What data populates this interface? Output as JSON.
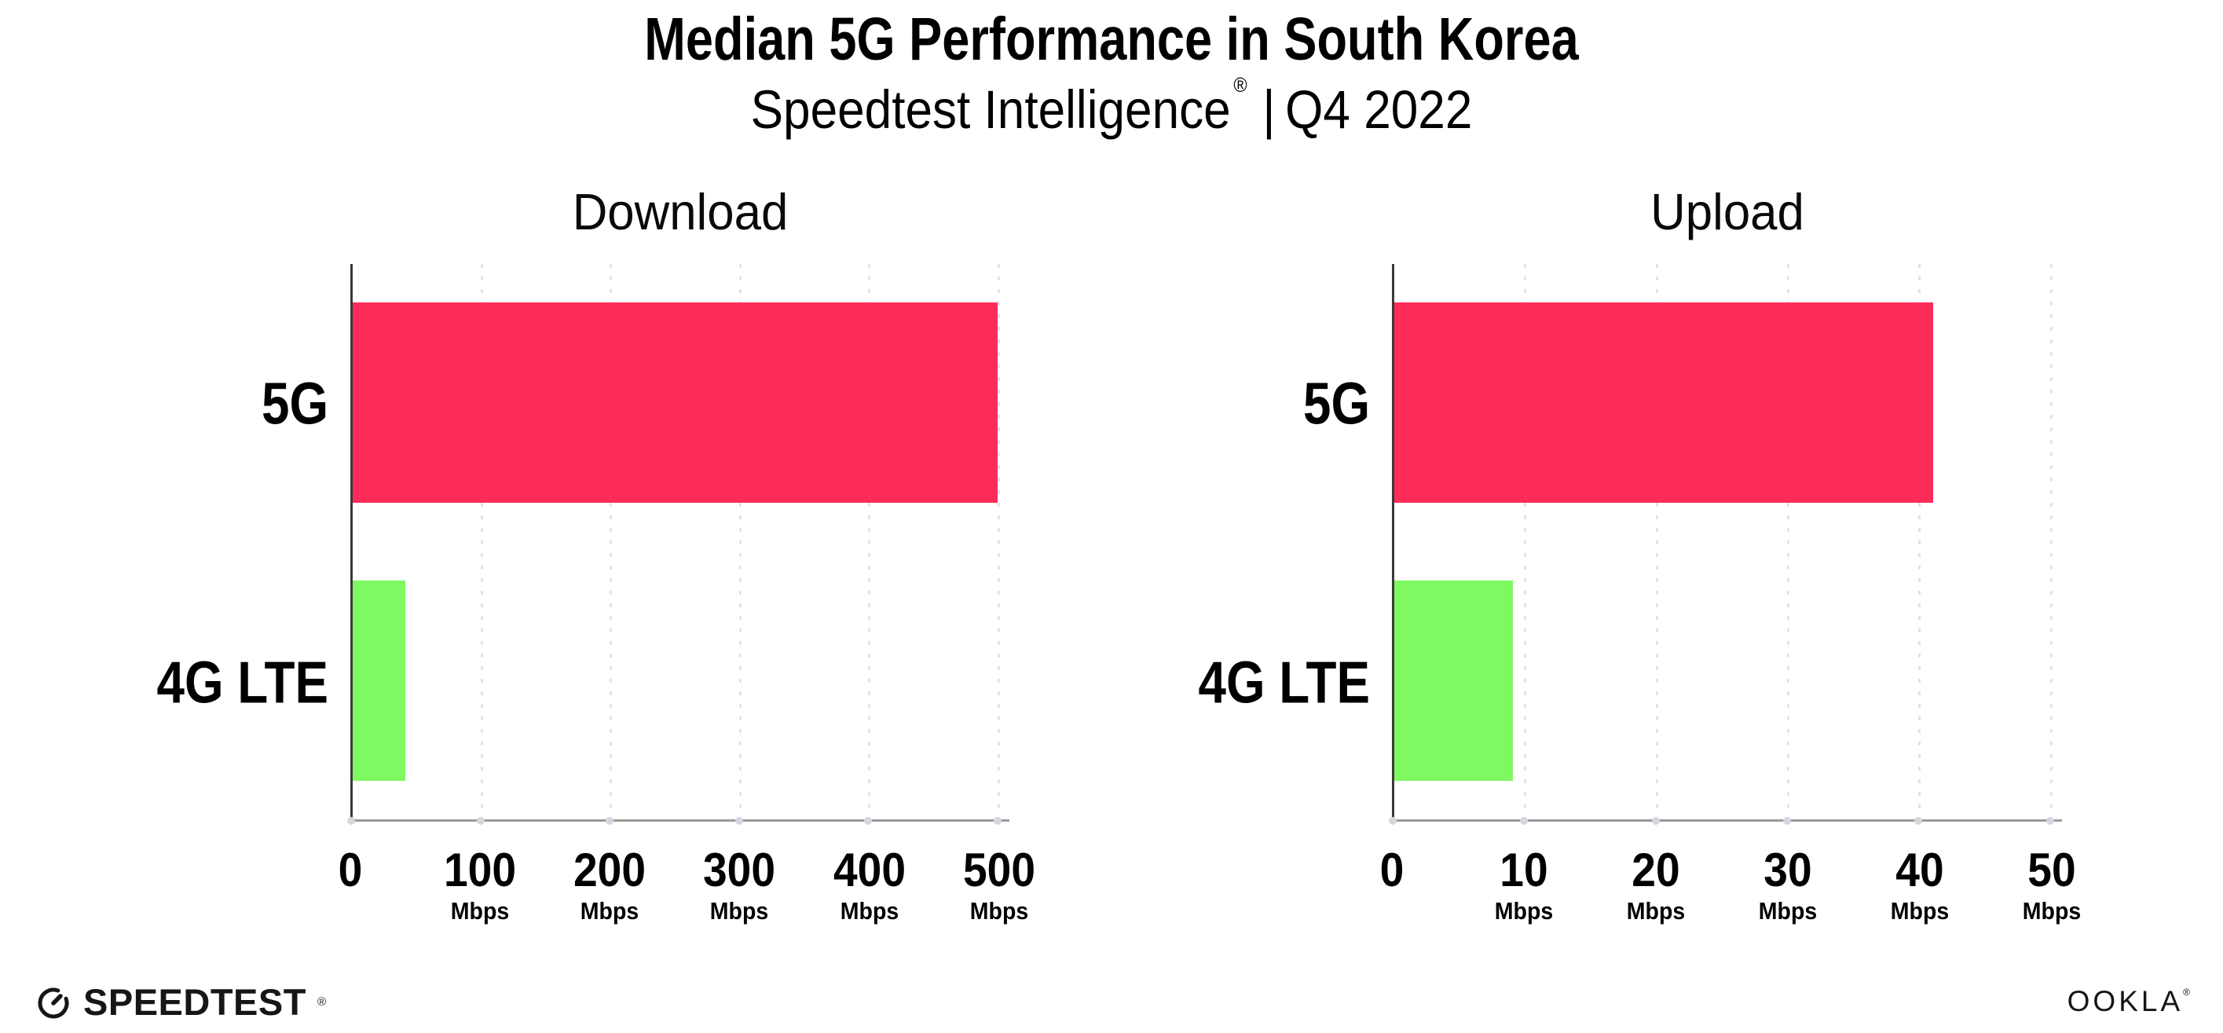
{
  "header": {
    "title": "Median 5G Performance in South Korea",
    "subtitle_brand": "Speedtest Intelligence",
    "subtitle_reg": "®",
    "subtitle_sep": "|",
    "subtitle_rest": "Q4 2022"
  },
  "chart_data": [
    {
      "type": "bar",
      "orientation": "horizontal",
      "title": "Download",
      "categories": [
        "5G",
        "4G LTE"
      ],
      "values": [
        499,
        41
      ],
      "unit": "Mbps",
      "xlim": [
        0,
        508
      ],
      "ticks": [
        {
          "value": 0,
          "label": "0",
          "unit": ""
        },
        {
          "value": 100,
          "label": "100",
          "unit": "Mbps"
        },
        {
          "value": 200,
          "label": "200",
          "unit": "Mbps"
        },
        {
          "value": 300,
          "label": "300",
          "unit": "Mbps"
        },
        {
          "value": 400,
          "label": "400",
          "unit": "Mbps"
        },
        {
          "value": 500,
          "label": "500",
          "unit": "Mbps"
        }
      ],
      "bar_colors": [
        "#FC2B57",
        "#7EF962"
      ],
      "grid": "vertical-dotted",
      "legend": "none"
    },
    {
      "type": "bar",
      "orientation": "horizontal",
      "title": "Upload",
      "categories": [
        "5G",
        "4G LTE"
      ],
      "values": [
        41,
        9
      ],
      "unit": "Mbps",
      "xlim": [
        0,
        50.8
      ],
      "ticks": [
        {
          "value": 0,
          "label": "0",
          "unit": ""
        },
        {
          "value": 10,
          "label": "10",
          "unit": "Mbps"
        },
        {
          "value": 20,
          "label": "20",
          "unit": "Mbps"
        },
        {
          "value": 30,
          "label": "30",
          "unit": "Mbps"
        },
        {
          "value": 40,
          "label": "40",
          "unit": "Mbps"
        },
        {
          "value": 50,
          "label": "50",
          "unit": "Mbps"
        }
      ],
      "bar_colors": [
        "#FC2B57",
        "#7EF962"
      ],
      "grid": "vertical-dotted",
      "legend": "none"
    }
  ],
  "colors": {
    "bar_5g": "#FC2B57",
    "bar_4g_lte": "#7EF962",
    "gridline": "#E2E2EA",
    "y_axis": "#3A3A3A",
    "x_axis": "#9A9A9A",
    "text": "#000000"
  },
  "footer": {
    "speedtest_label": "SPEEDTEST",
    "speedtest_reg": "®",
    "ookla_label": "OOKLA",
    "ookla_reg": "®"
  }
}
